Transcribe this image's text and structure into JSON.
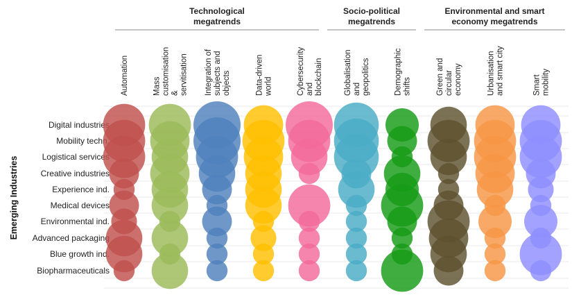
{
  "chart_data": {
    "type": "bubble-matrix",
    "y_axis_title": "Emerging Industries",
    "groups": [
      {
        "title_lines": [
          "Technological",
          "megatrends"
        ],
        "columns": [
          0,
          1,
          2,
          3,
          4
        ]
      },
      {
        "title_lines": [
          "Socio-political",
          "megatrends"
        ],
        "columns": [
          5,
          6
        ]
      },
      {
        "title_lines": [
          "Environmental and smart",
          "economy megatrends"
        ],
        "columns": [
          7,
          8,
          9
        ]
      }
    ],
    "columns": [
      {
        "name": "Automation",
        "lines": [
          "Automation"
        ],
        "color": "#c0504d"
      },
      {
        "name": "Mass customisation & servitisation",
        "lines": [
          "Mass",
          "customisation",
          "&",
          "servitisation"
        ],
        "color": "#9bbb59"
      },
      {
        "name": "Integration of subjects and objects",
        "lines": [
          "Integration of",
          "subjects and",
          "objects"
        ],
        "color": "#4f81bd"
      },
      {
        "name": "Data-driven world",
        "lines": [
          "Data-driven",
          "world"
        ],
        "color": "#ffc000"
      },
      {
        "name": "Cybersecurity and blockchain",
        "lines": [
          "Cybersecurity",
          "and",
          "blockchain"
        ],
        "color": "#f36a9a"
      },
      {
        "name": "Globalisation and geopolitics",
        "lines": [
          "Globalisation",
          "and",
          "geopolitics"
        ],
        "color": "#4bacc6"
      },
      {
        "name": "Demographic shifts",
        "lines": [
          "Demographic",
          "shifts"
        ],
        "color": "#169b16"
      },
      {
        "name": "Green and circular economy",
        "lines": [
          "Green and",
          "circular",
          "economy"
        ],
        "color": "#5e5230"
      },
      {
        "name": "Urbanisation and smart city",
        "lines": [
          "Urbanisation",
          "and smart city"
        ],
        "color": "#f79646"
      },
      {
        "name": "Smart mobility",
        "lines": [
          "Smart",
          "mobility"
        ],
        "color": "#8f8fff"
      }
    ],
    "rows": [
      "Digital industries",
      "Mobility techn.",
      "Logistical services",
      "Creative industries",
      "Experience ind.",
      "Medical devices",
      "Environmental ind.",
      "Advanced packaging",
      "Blue growth ind.",
      "Biopharmaceuticals"
    ],
    "values_note": "relative bubble size per industry/megatrend (0-10 scale, estimated)",
    "values": [
      [
        8,
        8,
        10,
        7,
        10,
        9,
        5,
        6,
        7,
        7
      ],
      [
        8,
        7,
        10,
        8,
        8,
        9,
        4,
        8,
        8,
        8
      ],
      [
        8,
        6,
        8,
        7,
        6,
        9,
        2,
        6,
        8,
        8
      ],
      [
        4,
        7,
        6,
        6,
        2,
        4,
        6,
        2,
        7,
        4
      ],
      [
        2,
        6,
        4,
        6,
        0,
        6,
        5,
        2,
        6,
        3
      ],
      [
        4,
        6,
        2,
        6,
        8,
        2,
        8,
        4,
        2,
        2
      ],
      [
        3,
        2,
        4,
        2,
        2,
        2,
        4,
        8,
        5,
        5
      ],
      [
        6,
        6,
        2,
        3,
        2,
        2,
        2,
        7,
        2,
        2
      ],
      [
        6,
        2,
        2,
        2,
        2,
        2,
        2,
        6,
        2,
        8
      ],
      [
        2,
        6,
        2,
        2,
        2,
        2,
        8,
        4,
        2,
        2
      ]
    ]
  }
}
